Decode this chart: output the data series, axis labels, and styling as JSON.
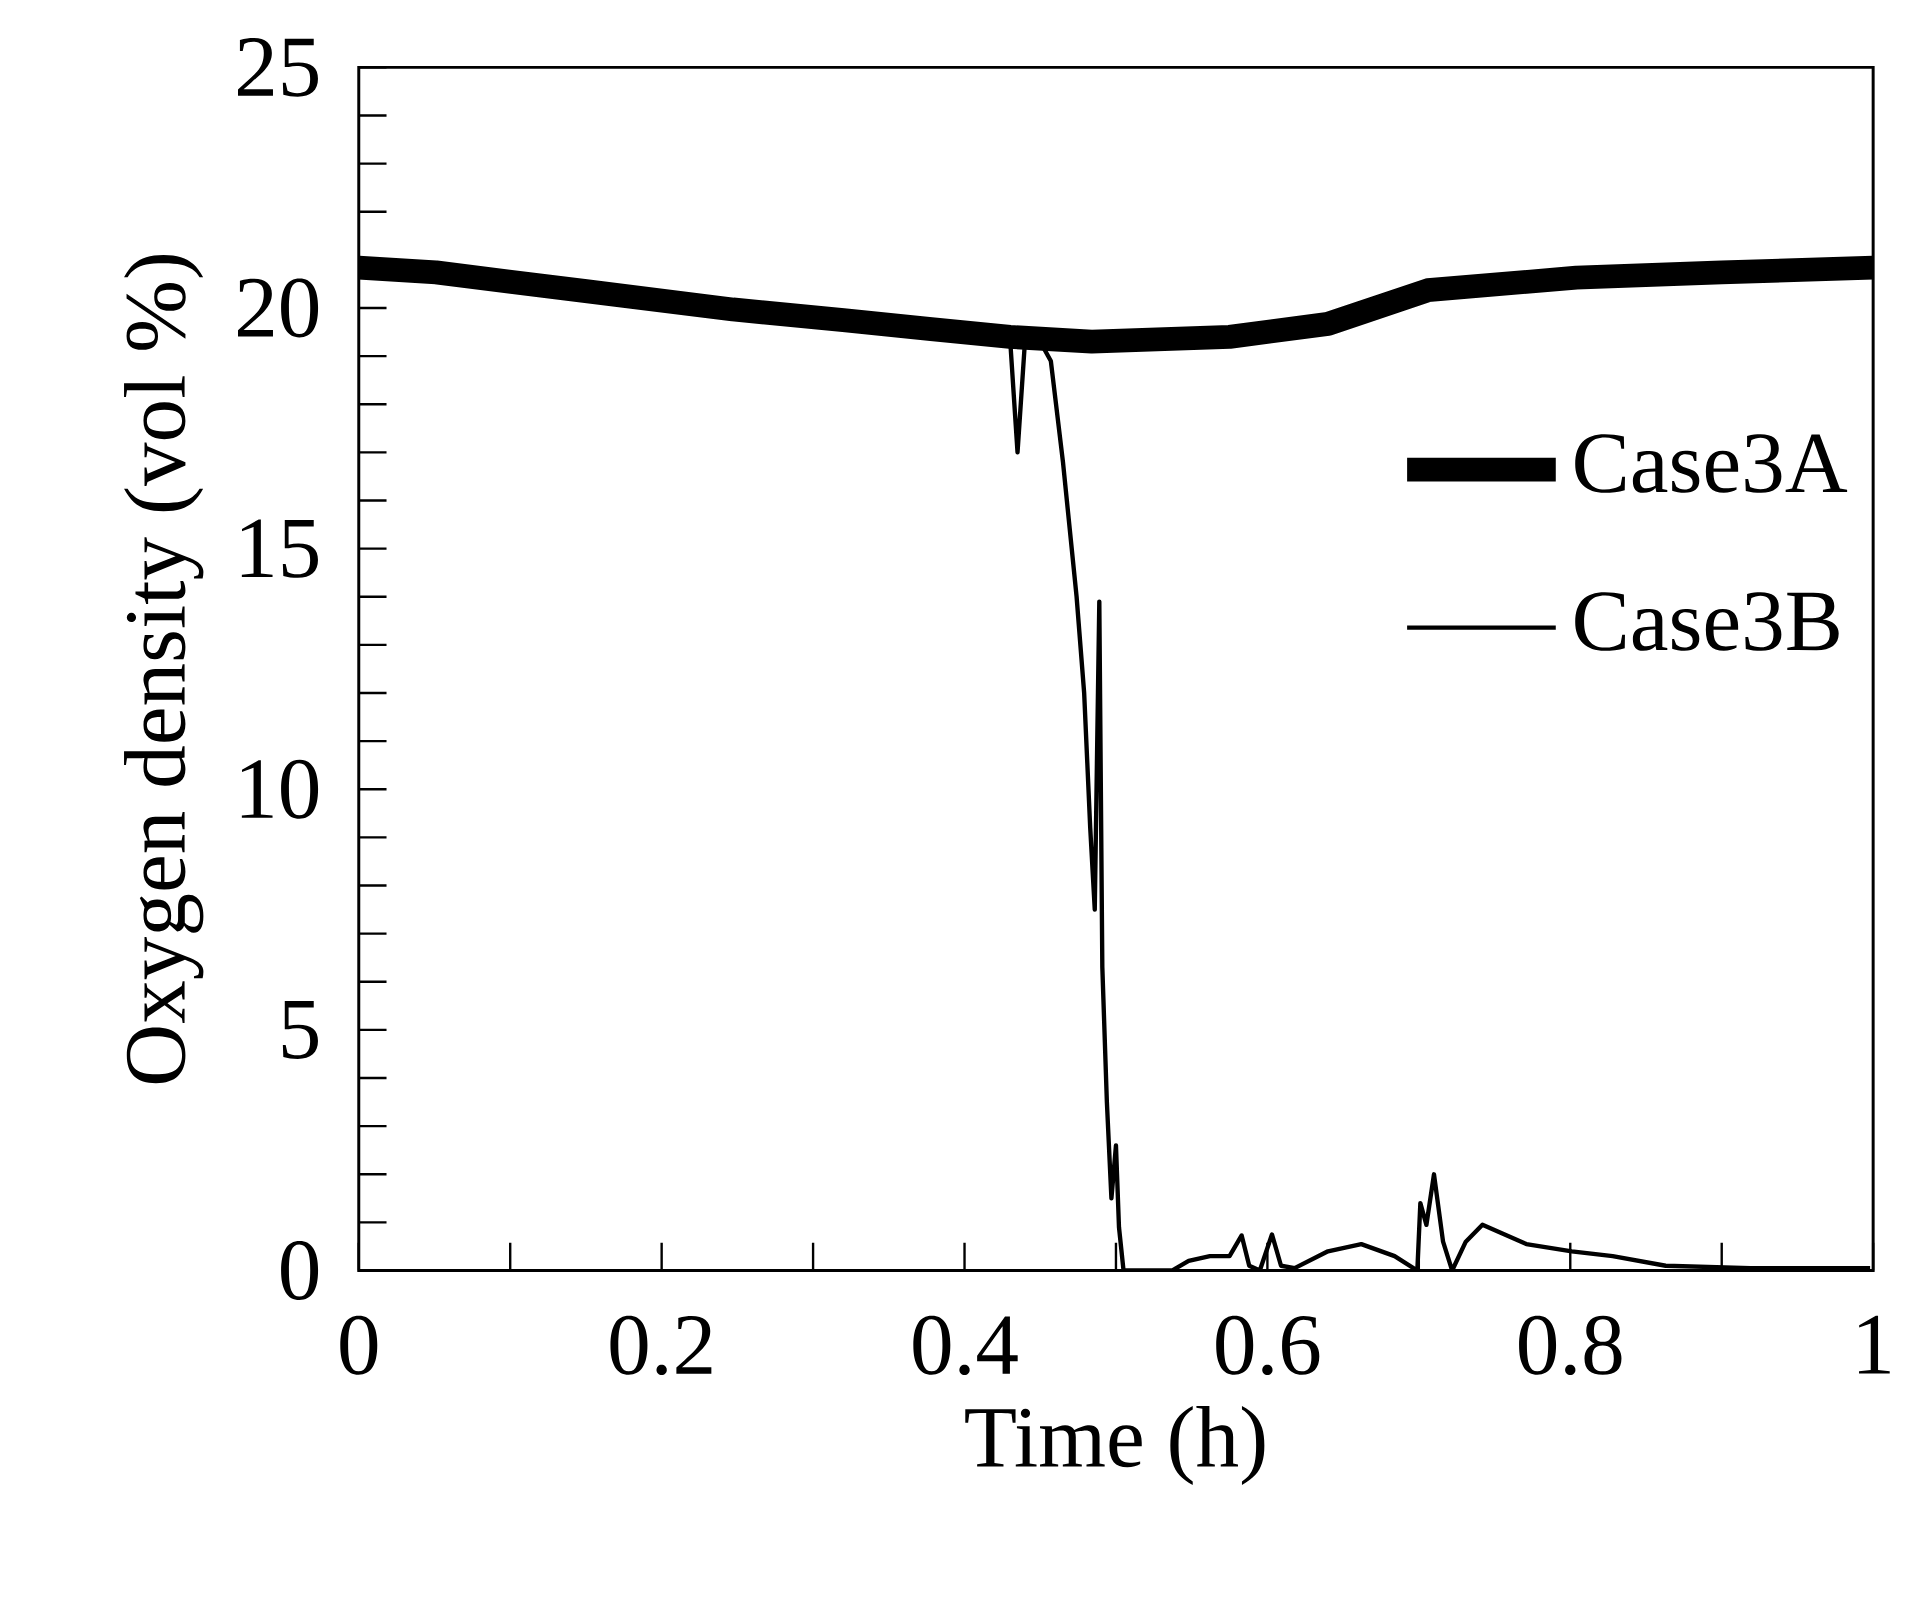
{
  "chart_data": {
    "type": "line",
    "xlabel": "Time (h)",
    "ylabel": "Oxygen density (vol %)",
    "xlim": [
      0,
      1
    ],
    "ylim": [
      0,
      25
    ],
    "xticks": [
      0,
      {
        "value": 0.1,
        "label": null
      },
      0.2,
      {
        "value": 0.3,
        "label": null
      },
      0.4,
      {
        "value": 0.5,
        "label": null
      },
      0.6,
      {
        "value": 0.7,
        "label": null
      },
      0.8,
      {
        "value": 0.9,
        "label": null
      },
      1
    ],
    "yticks": [
      0,
      {
        "value": 1,
        "label": null
      },
      {
        "value": 2,
        "label": null
      },
      {
        "value": 3,
        "label": null
      },
      {
        "value": 4,
        "label": null
      },
      5,
      {
        "value": 6,
        "label": null
      },
      {
        "value": 7,
        "label": null
      },
      {
        "value": 8,
        "label": null
      },
      {
        "value": 9,
        "label": null
      },
      10,
      {
        "value": 11,
        "label": null
      },
      {
        "value": 12,
        "label": null
      },
      {
        "value": 13,
        "label": null
      },
      {
        "value": 14,
        "label": null
      },
      15,
      {
        "value": 16,
        "label": null
      },
      {
        "value": 17,
        "label": null
      },
      {
        "value": 18,
        "label": null
      },
      {
        "value": 19,
        "label": null
      },
      20,
      {
        "value": 21,
        "label": null
      },
      {
        "value": 22,
        "label": null
      },
      {
        "value": 23,
        "label": null
      },
      {
        "value": 24,
        "label": null
      },
      25
    ],
    "legend": "right",
    "marker": "none",
    "line_style": "solid",
    "series": [
      {
        "name": "Case3A",
        "color": "#000000",
        "x": [
          0,
          0.051,
          0.15,
          0.247,
          0.32,
          0.378,
          0.43,
          0.484,
          0.575,
          0.64,
          0.706,
          0.804,
          0.9,
          1
        ],
        "values": [
          20.84,
          20.74,
          20.35,
          19.97,
          19.75,
          19.56,
          19.4,
          19.3,
          19.4,
          19.67,
          20.37,
          20.63,
          20.74,
          20.84
        ]
      },
      {
        "name": "Case3B",
        "color": "#000000",
        "x": [
          0,
          0.051,
          0.15,
          0.247,
          0.32,
          0.378,
          0.43,
          0.435,
          0.44,
          0.45,
          0.457,
          0.465,
          0.474,
          0.479,
          0.483,
          0.486,
          0.489,
          0.491,
          0.494,
          0.497,
          0.5,
          0.502,
          0.505,
          0.537,
          0.548,
          0.562,
          0.575,
          0.583,
          0.588,
          0.595,
          0.603,
          0.609,
          0.618,
          0.64,
          0.662,
          0.684,
          0.699,
          0.701,
          0.705,
          0.71,
          0.716,
          0.722,
          0.731,
          0.742,
          0.771,
          0.801,
          0.828,
          0.863,
          0.919,
          0.998
        ],
        "values": [
          20.84,
          20.74,
          20.35,
          19.97,
          19.75,
          19.56,
          19.4,
          17.0,
          19.35,
          19.3,
          18.9,
          16.8,
          14.0,
          12.0,
          9.2,
          7.5,
          13.9,
          6.3,
          3.5,
          1.5,
          2.6,
          0.9,
          0,
          0,
          0.2,
          0.3,
          0.3,
          0.73,
          0.1,
          0,
          0.75,
          0.1,
          0.05,
          0.4,
          0.55,
          0.3,
          0,
          1.4,
          0.95,
          2.0,
          0.6,
          0,
          0.6,
          0.95,
          0.55,
          0.4,
          0.3,
          0.1,
          0.05,
          0.05
        ]
      }
    ]
  }
}
